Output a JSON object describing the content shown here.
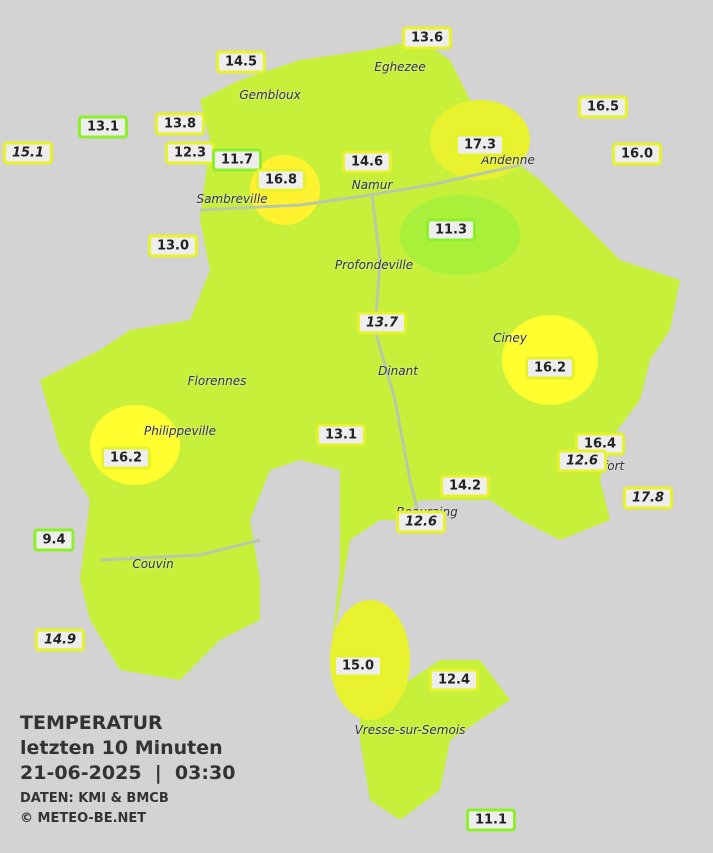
{
  "legend": {
    "title": "TEMPERATUR",
    "subtitle": "letzten 10 Minuten",
    "datetime": "21-06-2025  |  03:30",
    "source": "DATEN: KMI & BMCB",
    "copyright": "© METEO-BE.NET"
  },
  "towns": [
    "Eghezee",
    "Gembloux",
    "Andenne",
    "Namur",
    "Sambreville",
    "Profondeville",
    "Ciney",
    "Dinant",
    "Florennes",
    "Philippeville",
    "Rochefort",
    "Beauraing",
    "Couvin",
    "Vresse-sur-Semois"
  ],
  "stations": [
    "14.5",
    "13.6",
    "13.1",
    "13.8",
    "12.3",
    "11.7",
    "16.8",
    "14.6",
    "17.3",
    "16.5",
    "16.0",
    "15.1",
    "11.3",
    "13.0",
    "13.7",
    "16.2",
    "13.1",
    "16.2",
    "16.4",
    "12.6",
    "17.8",
    "14.2",
    "12.6",
    "9.4",
    "14.9",
    "15.0",
    "12.4",
    "11.1"
  ]
}
